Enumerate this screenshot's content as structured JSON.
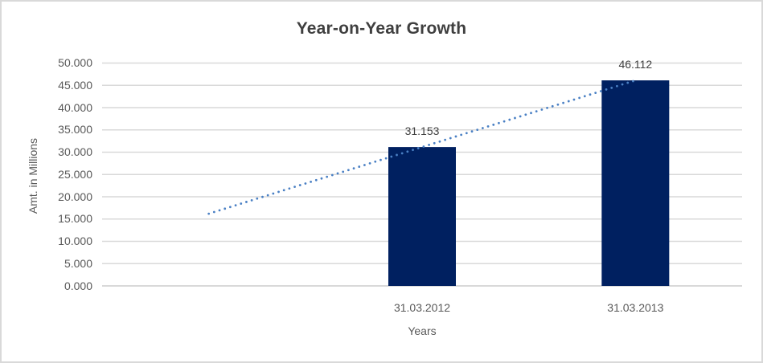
{
  "window": {
    "background": "#ffffff",
    "frame_border_color": "#d9d9d9"
  },
  "chart_data": {
    "type": "bar",
    "title": "Year-on-Year Growth",
    "xlabel": "Years",
    "ylabel": "Amt. in Millions",
    "categories": [
      "31.03.2012",
      "31.03.2013"
    ],
    "values": [
      31.153,
      46.112
    ],
    "data_labels": [
      "31.153",
      "46.112"
    ],
    "ylim": [
      0,
      50
    ],
    "ytick_step": 5,
    "ytick_labels": [
      "0.000",
      "5.000",
      "10.000",
      "15.000",
      "20.000",
      "25.000",
      "30.000",
      "35.000",
      "40.000",
      "45.000",
      "50.000"
    ],
    "grid": true,
    "legend": "none",
    "trendline": {
      "style": "dotted",
      "start_value": 16.2,
      "end_value": 46.112,
      "extends_back_periods": 1
    },
    "colors": {
      "bar": "#002060",
      "trendline": "#4a80c4",
      "gridline": "#d9d9d9",
      "axis_line": "#d9d9d9",
      "title_text": "#3f3f3f",
      "axis_text": "#595959",
      "data_label_text": "#404040"
    }
  }
}
